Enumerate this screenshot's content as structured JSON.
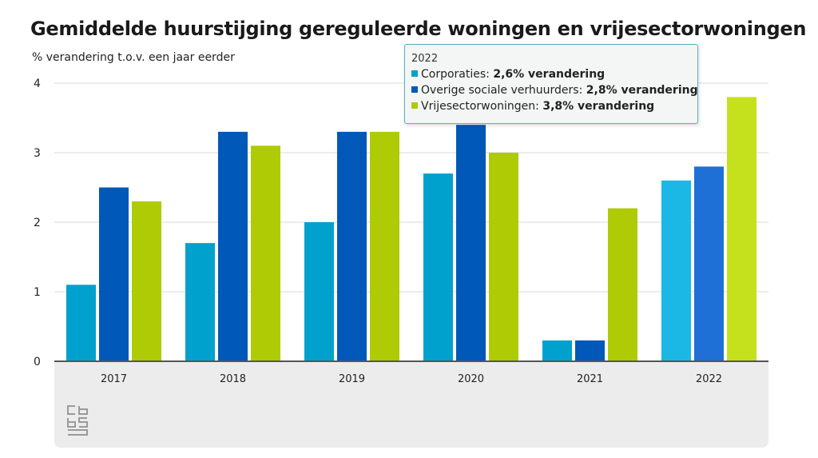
{
  "title": "Gemiddelde huurstijging gereguleerde woningen en vrijesectorwoningen",
  "unit_label": "% verandering t.o.v. een jaar eerder",
  "tooltip": {
    "year": "2022",
    "rows": [
      {
        "name": "Corporaties",
        "value": "2,6% verandering",
        "color": "#00a1cd"
      },
      {
        "name": "Overige sociale verhuurders",
        "value": "2,8% verandering",
        "color": "#0058b8"
      },
      {
        "name": "Vrijesectorwoningen",
        "value": "3,8% verandering",
        "color": "#afcb05"
      }
    ]
  },
  "logo_icon": "cbs-logo-icon",
  "chart_data": {
    "type": "bar",
    "categories": [
      "2017",
      "2018",
      "2019",
      "2020",
      "2021",
      "2022"
    ],
    "series": [
      {
        "name": "Corporaties",
        "values": [
          1.1,
          1.7,
          2.0,
          2.7,
          0.3,
          2.6
        ],
        "color": "#00a1cd",
        "highlight_color": "#1bb8e6"
      },
      {
        "name": "Overige sociale verhuurders",
        "values": [
          2.5,
          3.3,
          3.3,
          3.4,
          0.3,
          2.8
        ],
        "color": "#0058b8",
        "highlight_color": "#1e6fd6"
      },
      {
        "name": "Vrijesectorwoningen",
        "values": [
          2.3,
          3.1,
          3.3,
          3.0,
          2.2,
          3.8
        ],
        "color": "#afcb05",
        "highlight_color": "#c5e11e"
      }
    ],
    "highlighted_category": "2022",
    "y_ticks": [
      "0",
      "1",
      "2",
      "3",
      "4"
    ],
    "ylim": [
      0,
      4
    ],
    "grid": true,
    "ylabel": "% verandering t.o.v. een jaar eerder",
    "xlabel": ""
  }
}
